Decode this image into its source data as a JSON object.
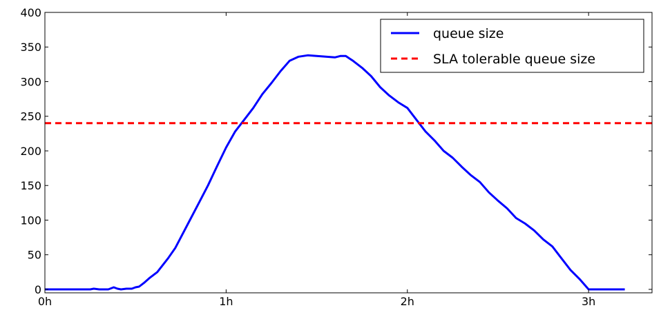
{
  "chart_data": {
    "type": "line",
    "title": "",
    "xlabel": "",
    "ylabel": "",
    "xlim": [
      0,
      3.35
    ],
    "ylim": [
      -5,
      400
    ],
    "x_ticks": [
      {
        "value": 0,
        "label": "0h"
      },
      {
        "value": 1,
        "label": "1h"
      },
      {
        "value": 2,
        "label": "2h"
      },
      {
        "value": 3,
        "label": "3h"
      }
    ],
    "y_ticks": [
      {
        "value": 0,
        "label": "0"
      },
      {
        "value": 50,
        "label": "50"
      },
      {
        "value": 100,
        "label": "100"
      },
      {
        "value": 150,
        "label": "150"
      },
      {
        "value": 200,
        "label": "200"
      },
      {
        "value": 250,
        "label": "250"
      },
      {
        "value": 300,
        "label": "300"
      },
      {
        "value": 350,
        "label": "350"
      },
      {
        "value": 400,
        "label": "400"
      }
    ],
    "grid": false,
    "legend_position": "top-right",
    "series": [
      {
        "name": "queue size",
        "color": "#0000ff",
        "style": "solid",
        "x": [
          0,
          0.25,
          0.27,
          0.3,
          0.35,
          0.38,
          0.4,
          0.42,
          0.45,
          0.48,
          0.5,
          0.52,
          0.55,
          0.58,
          0.62,
          0.65,
          0.68,
          0.72,
          0.75,
          0.8,
          0.85,
          0.9,
          0.95,
          1.0,
          1.05,
          1.1,
          1.15,
          1.2,
          1.25,
          1.3,
          1.35,
          1.4,
          1.45,
          1.5,
          1.55,
          1.6,
          1.63,
          1.66,
          1.7,
          1.75,
          1.8,
          1.85,
          1.9,
          1.95,
          2.0,
          2.05,
          2.1,
          2.15,
          2.2,
          2.25,
          2.3,
          2.35,
          2.4,
          2.45,
          2.5,
          2.55,
          2.6,
          2.65,
          2.7,
          2.75,
          2.8,
          2.85,
          2.9,
          2.95,
          3.0,
          3.05,
          3.1,
          3.15,
          3.2
        ],
        "values": [
          0,
          0,
          1,
          0,
          0,
          3,
          1,
          0,
          1,
          1,
          3,
          4,
          10,
          17,
          25,
          35,
          45,
          60,
          75,
          100,
          125,
          150,
          178,
          205,
          228,
          245,
          262,
          282,
          298,
          315,
          330,
          336,
          338,
          337,
          336,
          335,
          337,
          337,
          330,
          320,
          308,
          292,
          280,
          270,
          262,
          245,
          228,
          215,
          200,
          190,
          177,
          165,
          155,
          140,
          128,
          117,
          103,
          95,
          85,
          72,
          62,
          45,
          28,
          15,
          0,
          0,
          0,
          0,
          0
        ]
      },
      {
        "name": "SLA tolerable queue size",
        "color": "#ff0000",
        "style": "dashed",
        "x": [
          0,
          3.35
        ],
        "values": [
          240,
          240
        ]
      }
    ]
  }
}
